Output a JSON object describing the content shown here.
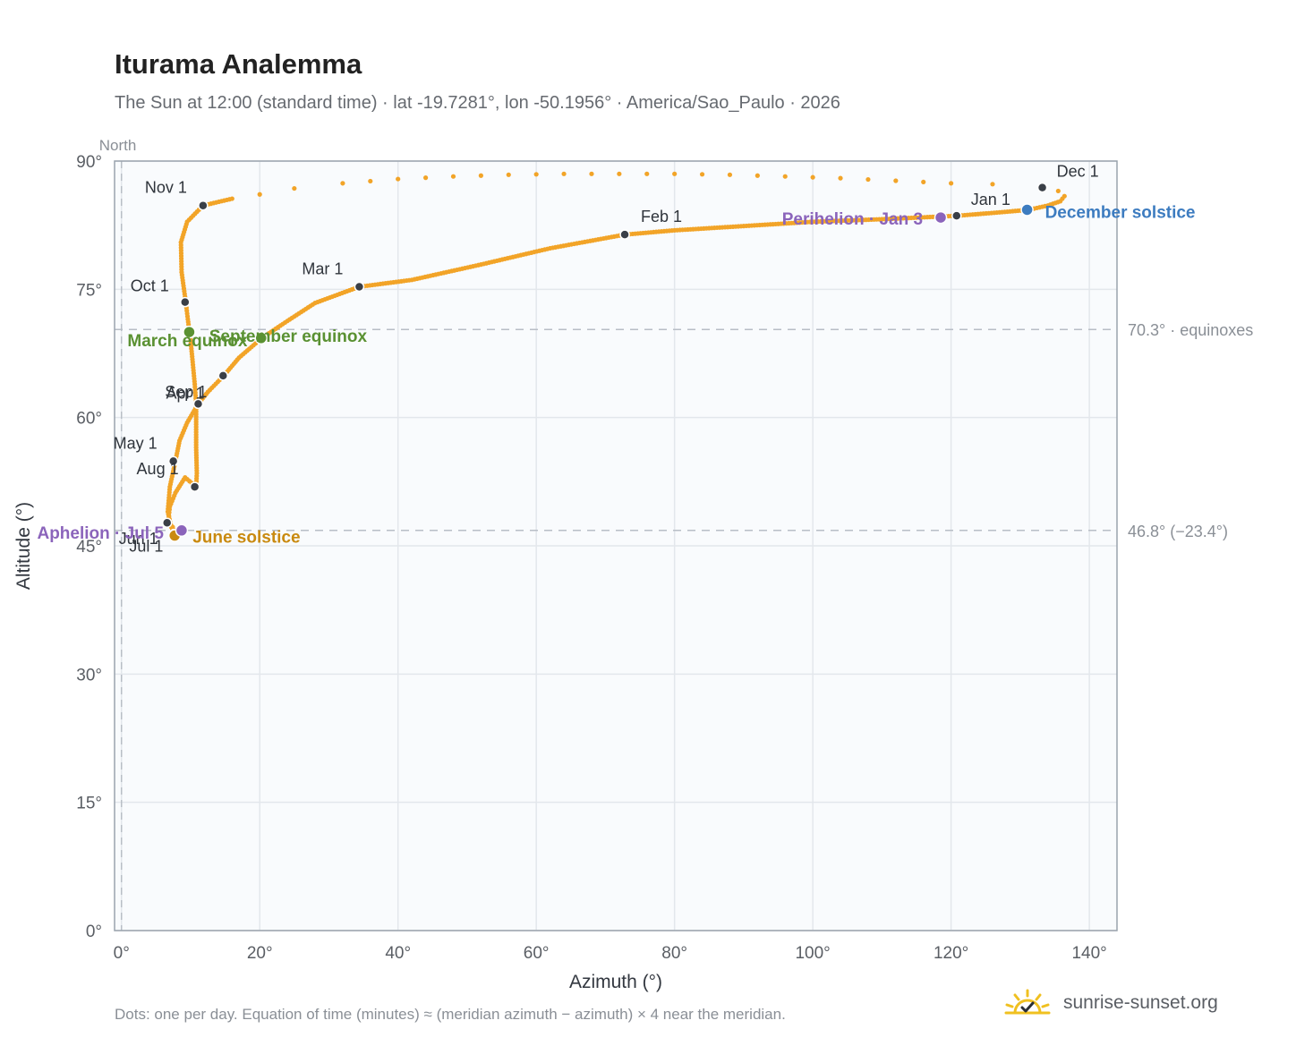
{
  "title": "Iturama Analemma",
  "subtitle": "The Sun at 12:00 (standard time) · lat -19.7281°, lon -50.1956° · America/Sao_Paulo · 2026",
  "footnote": "Dots: one per day. Equation of time (minutes) ≈ (meridian azimuth − azimuth) × 4 near the meridian.",
  "brand": {
    "name": "sunrise-sunset.org",
    "icon": "sun-logo-icon",
    "accent": "#f0c020"
  },
  "colors": {
    "path": "#f2a428",
    "month_dot": "#3a3f47",
    "equinox": "#5a9132",
    "june_solstice": "#c98a10",
    "december_solstice": "#3d7cc0",
    "apsis": "#8b64bb",
    "reference": "#b8bec6",
    "grid": "#e3e7ec",
    "plot_bg": "#f9fbfd"
  },
  "chart_data": {
    "type": "scatter",
    "xlabel": "Azimuth (°)",
    "ylabel": "Altitude (°)",
    "xlim": [
      -1,
      144
    ],
    "ylim": [
      0,
      90
    ],
    "xticks": [
      0,
      20,
      40,
      60,
      80,
      100,
      120,
      140
    ],
    "yticks": [
      0,
      15,
      30,
      45,
      60,
      75,
      90
    ],
    "xtick_labels": [
      "0°",
      "20°",
      "40°",
      "60°",
      "80°",
      "100°",
      "120°",
      "140°"
    ],
    "ytick_labels": [
      "0°",
      "15°",
      "30°",
      "45°",
      "60°",
      "75°",
      "90°"
    ],
    "grid": true,
    "north_line": {
      "x": 0,
      "label": "North"
    },
    "reference_lines": [
      {
        "y": 70.3,
        "label": "70.3° · equinoxes"
      },
      {
        "y": 46.8,
        "label": "46.8° (−23.4°)"
      }
    ],
    "daily_path": [
      [
        120.8,
        83.6
      ],
      [
        110.0,
        83.2
      ],
      [
        100.0,
        82.9
      ],
      [
        90.0,
        82.4
      ],
      [
        80.0,
        81.9
      ],
      [
        72.8,
        81.4
      ],
      [
        62.0,
        79.8
      ],
      [
        52.0,
        77.9
      ],
      [
        42.0,
        76.1
      ],
      [
        34.4,
        75.3
      ],
      [
        28.0,
        73.4
      ],
      [
        24.0,
        71.3
      ],
      [
        20.3,
        69.3
      ],
      [
        17.0,
        67.0
      ],
      [
        14.8,
        64.9
      ],
      [
        12.5,
        63.0
      ],
      [
        11.1,
        61.6
      ],
      [
        9.5,
        59.4
      ],
      [
        8.4,
        57.3
      ],
      [
        7.8,
        54.9
      ],
      [
        7.0,
        51.9
      ],
      [
        6.7,
        49.0
      ],
      [
        7.2,
        47.2
      ],
      [
        7.7,
        46.3
      ],
      [
        7.6,
        46.4
      ],
      [
        7.4,
        47.2
      ],
      [
        6.9,
        47.6
      ],
      [
        6.8,
        48.2
      ],
      [
        7.0,
        49.6
      ],
      [
        7.8,
        51.2
      ],
      [
        9.2,
        53.0
      ],
      [
        10.8,
        51.9
      ],
      [
        10.9,
        53.5
      ],
      [
        10.8,
        56.5
      ],
      [
        10.8,
        59.5
      ],
      [
        10.8,
        61.6
      ],
      [
        10.6,
        63.9
      ],
      [
        10.3,
        66.5
      ],
      [
        10.0,
        69.0
      ],
      [
        9.6,
        71.5
      ],
      [
        9.3,
        73.5
      ],
      [
        8.7,
        77.0
      ],
      [
        8.6,
        80.5
      ],
      [
        9.5,
        82.9
      ],
      [
        11.8,
        84.8
      ],
      [
        16.0,
        85.6
      ],
      [
        20.0,
        86.1
      ],
      [
        25.0,
        86.8
      ],
      [
        32.0,
        87.4
      ],
      [
        40.0,
        87.9
      ],
      [
        48.0,
        88.2
      ],
      [
        56.0,
        88.4
      ],
      [
        64.0,
        88.5
      ],
      [
        72.0,
        88.5
      ],
      [
        80.0,
        88.5
      ],
      [
        88.0,
        88.4
      ],
      [
        96.0,
        88.2
      ],
      [
        104.0,
        88.0
      ],
      [
        112.0,
        87.7
      ],
      [
        120.0,
        87.4
      ],
      [
        126.0,
        87.3
      ],
      [
        133.2,
        86.9
      ],
      [
        135.5,
        86.5
      ],
      [
        136.4,
        85.9
      ],
      [
        135.8,
        85.3
      ],
      [
        134.0,
        84.8
      ],
      [
        131.2,
        84.3
      ],
      [
        127.0,
        84.0
      ],
      [
        120.8,
        83.6
      ]
    ],
    "month_points": [
      {
        "label": "Jan 1",
        "x": 120.8,
        "y": 83.6
      },
      {
        "label": "Feb 1",
        "x": 72.8,
        "y": 81.4
      },
      {
        "label": "Mar 1",
        "x": 34.4,
        "y": 75.3
      },
      {
        "label": "Apr 1",
        "x": 11.1,
        "y": 61.6
      },
      {
        "label": "May 1",
        "x": 7.5,
        "y": 54.9
      },
      {
        "label": "Jun 1",
        "x": 6.6,
        "y": 47.7
      },
      {
        "label": "Jul 1",
        "x": 7.6,
        "y": 46.4
      },
      {
        "label": "Aug 1",
        "x": 10.6,
        "y": 51.9
      },
      {
        "label": "Sep 1",
        "x": 14.7,
        "y": 64.9
      },
      {
        "label": "Oct 1",
        "x": 9.2,
        "y": 73.5
      },
      {
        "label": "Nov 1",
        "x": 11.8,
        "y": 84.8
      },
      {
        "label": "Dec 1",
        "x": 133.2,
        "y": 86.9
      }
    ],
    "events": [
      {
        "label": "March equinox",
        "x": 9.8,
        "y": 70.0,
        "kind": "equinox"
      },
      {
        "label": "September equinox",
        "x": 20.2,
        "y": 69.3,
        "kind": "equinox"
      },
      {
        "label": "June solstice",
        "x": 7.7,
        "y": 46.2,
        "kind": "june_solstice"
      },
      {
        "label": "December solstice",
        "x": 131.0,
        "y": 84.3,
        "kind": "december_solstice"
      },
      {
        "label": "Aphelion · Jul 5",
        "x": 8.7,
        "y": 46.8,
        "kind": "apsis"
      },
      {
        "label": "Perihelion · Jan 3",
        "x": 118.5,
        "y": 83.4,
        "kind": "apsis"
      }
    ]
  }
}
